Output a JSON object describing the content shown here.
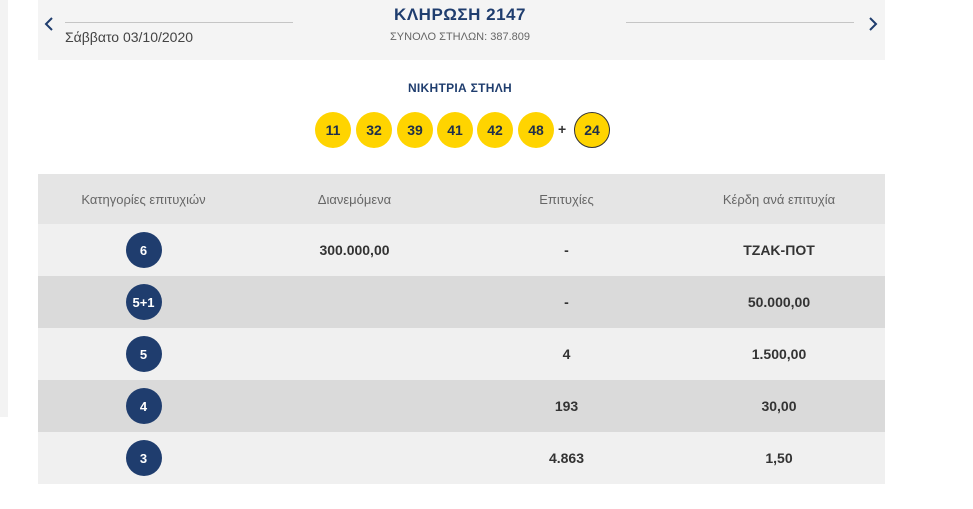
{
  "header": {
    "date": "Σάββατο 03/10/2020",
    "draw_title": "ΚΛΗΡΩΣΗ 2147",
    "total_columns": "ΣΥΝΟΛΟ ΣΤΗΛΩΝ: 387.809",
    "prev_icon": "chevron-left-icon",
    "next_icon": "chevron-right-icon"
  },
  "winning": {
    "label": "ΝΙΚΗΤΡΙΑ ΣΤΗΛΗ",
    "numbers": [
      "11",
      "32",
      "39",
      "41",
      "42",
      "48"
    ],
    "plus": "+",
    "bonus": "24"
  },
  "table": {
    "headers": [
      "Κατηγορίες επιτυχιών",
      "Διανεμόμενα",
      "Επιτυχίες",
      "Κέρδη ανά επιτυχία"
    ],
    "rows": [
      {
        "category": "6",
        "distributed": "300.000,00",
        "winners": "-",
        "prize": "ΤΖΑΚ-ΠΟΤ"
      },
      {
        "category": "5+1",
        "distributed": "",
        "winners": "-",
        "prize": "50.000,00"
      },
      {
        "category": "5",
        "distributed": "",
        "winners": "4",
        "prize": "1.500,00"
      },
      {
        "category": "4",
        "distributed": "",
        "winners": "193",
        "prize": "30,00"
      },
      {
        "category": "3",
        "distributed": "",
        "winners": "4.863",
        "prize": "1,50"
      }
    ]
  },
  "colors": {
    "navy": "#1f3d6e",
    "ball_yellow": "#ffd400",
    "row_light": "#f0f0f0",
    "row_dark": "#dadada"
  }
}
